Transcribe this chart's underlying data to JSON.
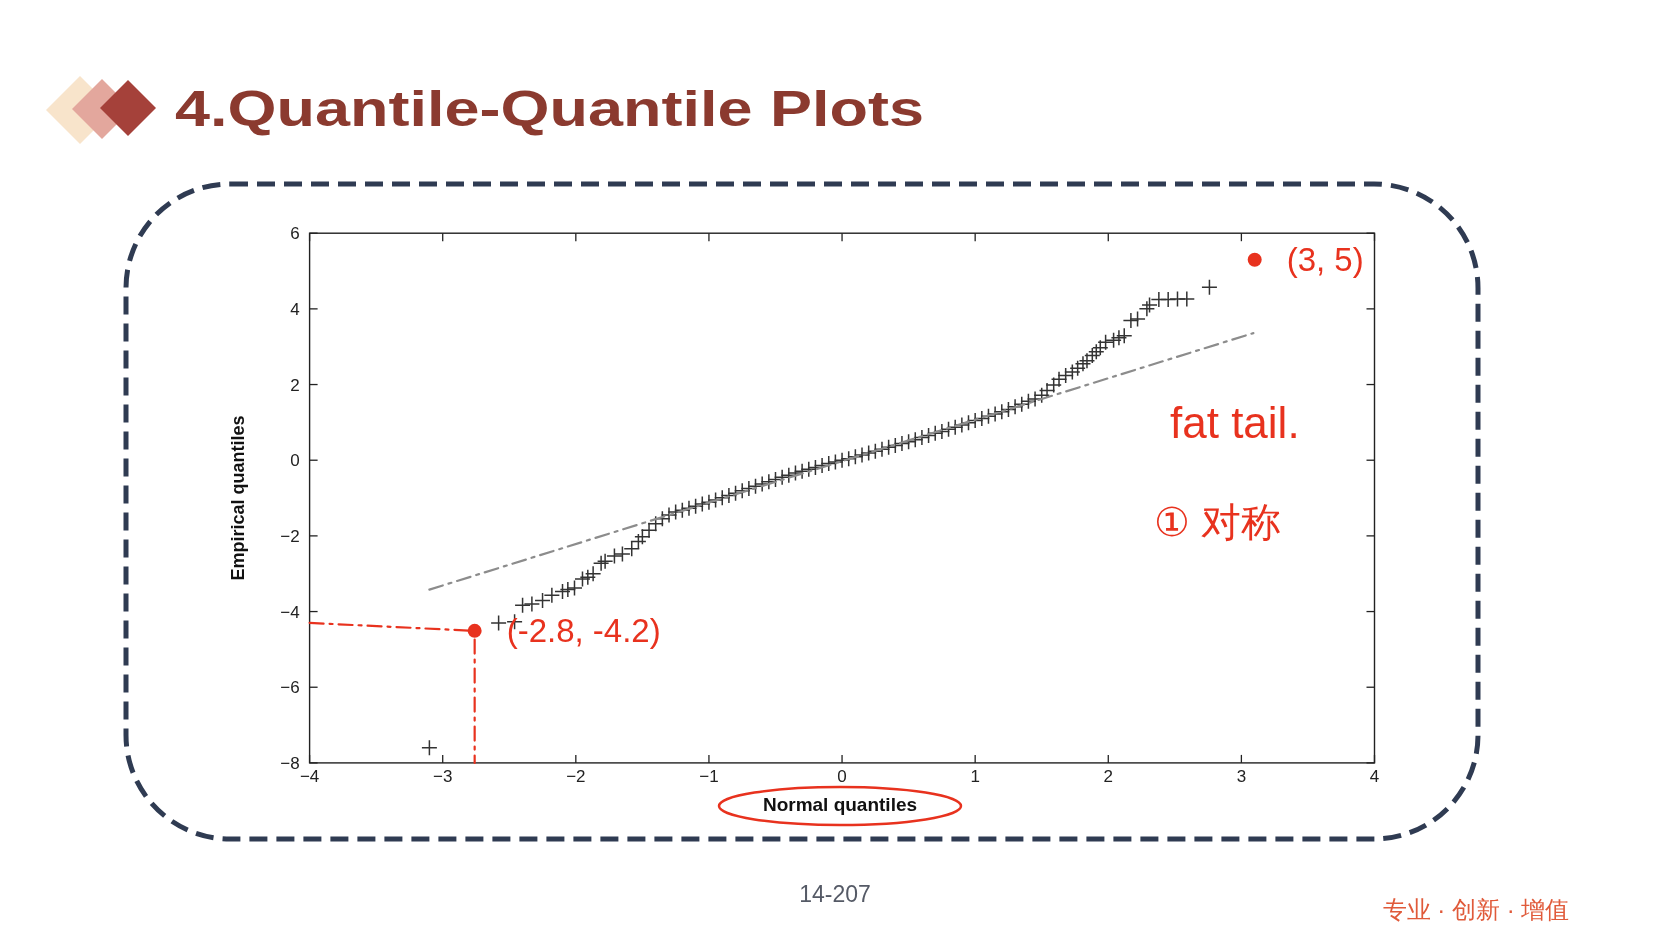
{
  "chart_data": {
    "type": "scatter",
    "title": "4.Quantile-Quantile Plots",
    "xlabel": "Normal quantiles",
    "ylabel": "Empirical quantiles",
    "xlim": [
      -4,
      4
    ],
    "ylim": [
      -8,
      6
    ],
    "xticks": [
      {
        "value": -4,
        "label": "−4"
      },
      {
        "value": -3,
        "label": "−3"
      },
      {
        "value": -2,
        "label": "−2"
      },
      {
        "value": -1,
        "label": "−1"
      },
      0,
      1,
      2,
      3,
      4
    ],
    "yticks": [
      {
        "value": -8,
        "label": "−8"
      },
      {
        "value": -6,
        "label": "−6"
      },
      {
        "value": -4,
        "label": "−4"
      },
      {
        "value": -2,
        "label": "−2"
      },
      0,
      2,
      4,
      6
    ],
    "series": [
      {
        "color": "#333333",
        "marker": "cross",
        "x": [
          -3.1,
          -2.58,
          -2.46,
          -2.4,
          -2.33,
          -2.25,
          -2.18,
          -2.1,
          -2.06,
          -2.01,
          -1.95,
          -1.91,
          -1.87,
          -1.81,
          -1.78,
          -1.71,
          -1.65,
          -1.58,
          -1.53,
          -1.5,
          -1.45,
          -1.4,
          -1.35,
          -1.3,
          -1.25,
          -1.2,
          -1.15,
          -1.1,
          -1.05,
          -1.0,
          -0.95,
          -0.9,
          -0.85,
          -0.8,
          -0.75,
          -0.7,
          -0.65,
          -0.6,
          -0.55,
          -0.5,
          -0.45,
          -0.4,
          -0.35,
          -0.3,
          -0.25,
          -0.2,
          -0.15,
          -0.1,
          -0.05,
          0,
          0.05,
          0.1,
          0.15,
          0.2,
          0.25,
          0.3,
          0.35,
          0.4,
          0.45,
          0.5,
          0.55,
          0.6,
          0.65,
          0.7,
          0.75,
          0.8,
          0.85,
          0.9,
          0.95,
          1.0,
          1.05,
          1.1,
          1.15,
          1.2,
          1.25,
          1.3,
          1.35,
          1.4,
          1.45,
          1.5,
          1.54,
          1.59,
          1.63,
          1.68,
          1.73,
          1.77,
          1.81,
          1.84,
          1.88,
          1.91,
          1.94,
          1.98,
          2.04,
          2.08,
          2.12,
          2.17,
          2.22,
          2.29,
          2.31,
          2.38,
          2.45,
          2.52,
          2.59,
          2.76
        ],
        "values": [
          -7.6,
          -4.3,
          -4.27,
          -3.83,
          -3.8,
          -3.71,
          -3.57,
          -3.47,
          -3.42,
          -3.38,
          -3.14,
          -3.09,
          -3.0,
          -2.72,
          -2.67,
          -2.53,
          -2.48,
          -2.34,
          -2.15,
          -2.02,
          -1.85,
          -1.68,
          -1.55,
          -1.45,
          -1.37,
          -1.32,
          -1.27,
          -1.22,
          -1.16,
          -1.11,
          -1.05,
          -0.99,
          -0.93,
          -0.87,
          -0.81,
          -0.75,
          -0.69,
          -0.63,
          -0.57,
          -0.51,
          -0.45,
          -0.4,
          -0.34,
          -0.29,
          -0.24,
          -0.19,
          -0.14,
          -0.09,
          -0.05,
          0,
          0.04,
          0.09,
          0.14,
          0.19,
          0.24,
          0.29,
          0.34,
          0.39,
          0.44,
          0.49,
          0.54,
          0.6,
          0.65,
          0.71,
          0.76,
          0.82,
          0.87,
          0.93,
          0.99,
          1.05,
          1.1,
          1.16,
          1.22,
          1.28,
          1.34,
          1.41,
          1.48,
          1.56,
          1.62,
          1.72,
          1.84,
          1.99,
          2.14,
          2.24,
          2.33,
          2.43,
          2.55,
          2.63,
          2.77,
          2.87,
          2.97,
          3.12,
          3.17,
          3.24,
          3.29,
          3.69,
          3.73,
          4.0,
          4.1,
          4.25,
          4.25,
          4.26,
          4.26,
          4.57
        ]
      },
      {
        "type": "line",
        "color": "#8c8c8c",
        "line_style": "dashed",
        "x": [
          -3.1,
          3.09
        ],
        "values": [
          -3.42,
          3.36
        ]
      },
      {
        "type": "line",
        "color": "#e8321e",
        "line_style": "dashed",
        "x": [
          -4,
          -2.76,
          -2.76
        ],
        "values": [
          -4.3,
          -4.51,
          -8
        ]
      },
      {
        "color": "#e8321e",
        "marker": "circle",
        "x": [
          3.1,
          -2.76
        ],
        "values": [
          5.3,
          -4.51
        ]
      }
    ],
    "annotations": [
      {
        "text": "(3, 5)",
        "x": 3.1,
        "y": 5.3
      },
      {
        "text": "(-2.8, -4.2)",
        "x": -2.76,
        "y": -4.51
      },
      "fat tail.",
      "① 对称",
      "14-207",
      "专业 · 创新 · 增值"
    ]
  }
}
